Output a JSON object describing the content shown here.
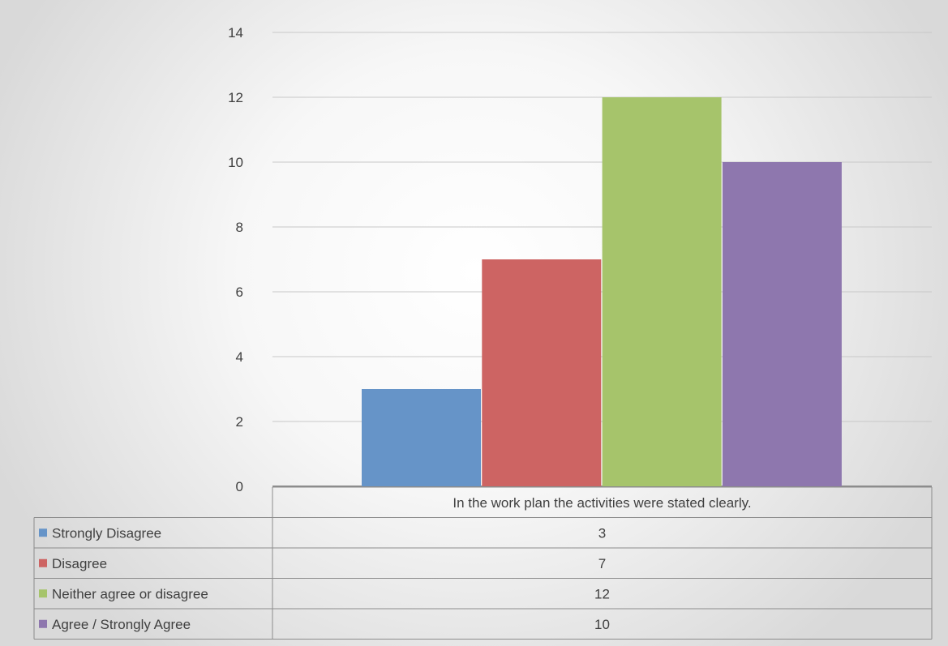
{
  "chart_data": {
    "type": "bar",
    "categories": [
      "In the work plan the activities were stated clearly."
    ],
    "series": [
      {
        "name": "Strongly Disagree",
        "values": [
          3
        ],
        "color": "#6694c8"
      },
      {
        "name": "Disagree",
        "values": [
          7
        ],
        "color": "#cd6463"
      },
      {
        "name": "Neither agree or disagree",
        "values": [
          12
        ],
        "color": "#a6c46b"
      },
      {
        "name": "Agree / Strongly Agree",
        "values": [
          10
        ],
        "color": "#8e77ae"
      }
    ],
    "title": "",
    "xlabel": "",
    "ylabel": "",
    "ylim": [
      0,
      14
    ],
    "yticks": [
      0,
      2,
      4,
      6,
      8,
      10,
      12,
      14
    ],
    "grid": true,
    "legend": "data-table"
  }
}
